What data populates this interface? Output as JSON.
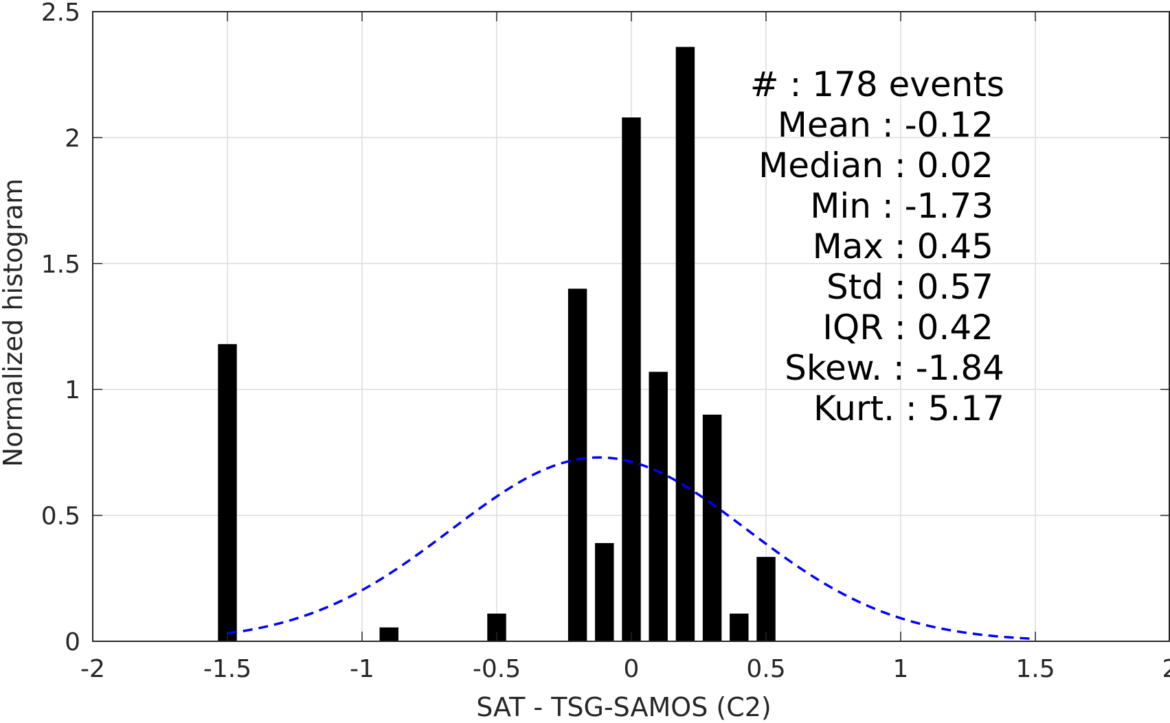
{
  "chart_data": {
    "type": "bar",
    "xlabel": "SAT - TSG-SAMOS (C2)",
    "ylabel": "Normalized histogram",
    "xlim": [
      -2,
      2
    ],
    "ylim": [
      0,
      2.5
    ],
    "xticks": [
      "-2",
      "-1.5",
      "-1",
      "-0.5",
      "0",
      "0.5",
      "1",
      "1.5",
      "2"
    ],
    "yticks": [
      "0",
      "0.5",
      "1",
      "1.5",
      "2",
      "2.5"
    ],
    "grid": true,
    "bar_color": "#000000",
    "bar_width": 0.07,
    "bars": [
      {
        "x": -1.5,
        "value": 1.18
      },
      {
        "x": -0.9,
        "value": 0.055
      },
      {
        "x": -0.5,
        "value": 0.11
      },
      {
        "x": -0.2,
        "value": 1.4
      },
      {
        "x": -0.1,
        "value": 0.39
      },
      {
        "x": 0.0,
        "value": 2.08
      },
      {
        "x": 0.1,
        "value": 1.07
      },
      {
        "x": 0.2,
        "value": 2.36
      },
      {
        "x": 0.3,
        "value": 0.9
      },
      {
        "x": 0.4,
        "value": 0.11
      },
      {
        "x": 0.5,
        "value": 0.335
      }
    ],
    "fit_curve": {
      "style": "dashed",
      "color": "#0000ff",
      "distribution": "normal",
      "mean": -0.12,
      "std": 0.55,
      "peak": 0.73,
      "x_range": [
        -1.5,
        1.5
      ]
    },
    "stats": [
      {
        "label": "#  ",
        "value": ": 178 events"
      },
      {
        "label": "Mean",
        "value": ": -0.12"
      },
      {
        "label": "Median",
        "value": ": 0.02"
      },
      {
        "label": "Min",
        "value": ": -1.73"
      },
      {
        "label": "Max",
        "value": ": 0.45"
      },
      {
        "label": "Std",
        "value": ": 0.57"
      },
      {
        "label": "IQR",
        "value": ": 0.42"
      },
      {
        "label": "Skew.",
        "value": ": -1.84"
      },
      {
        "label": "Kurt.",
        "value": ": 5.17"
      }
    ]
  }
}
